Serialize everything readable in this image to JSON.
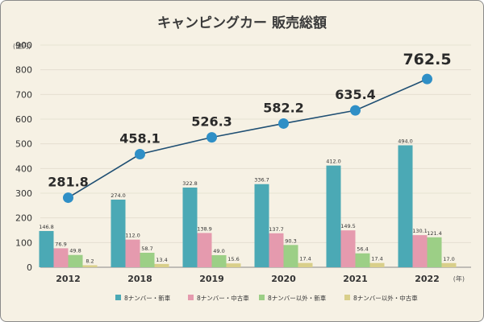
{
  "chart_data": {
    "type": "bar",
    "title": "キャンピングカー 販売総額",
    "y_unit": "(億円)",
    "x_unit": "(年)",
    "categories": [
      "2012",
      "2018",
      "2019",
      "2020",
      "2021",
      "2022"
    ],
    "ylim": [
      0,
      900
    ],
    "yticks": [
      "0",
      "100",
      "200",
      "300",
      "400",
      "500",
      "600",
      "700",
      "800",
      "900"
    ],
    "grid": true,
    "legend_position": "bottom",
    "series": [
      {
        "name": "8ナンバー・新車",
        "color": "#4ba9b5",
        "values": [
          146.8,
          274.0,
          322.8,
          336.7,
          412.0,
          494.0
        ],
        "labels": [
          "146.8",
          "274.0",
          "322.8",
          "336.7",
          "412.0",
          "494.0"
        ]
      },
      {
        "name": "8ナンバー・中古車",
        "color": "#e59aae",
        "values": [
          76.9,
          112.0,
          138.9,
          137.7,
          149.5,
          130.1
        ],
        "labels": [
          "76.9",
          "112.0",
          "138.9",
          "137.7",
          "149.5",
          "130.1"
        ]
      },
      {
        "name": "8ナンバー以外・新車",
        "color": "#9ccf86",
        "values": [
          49.8,
          58.7,
          49.0,
          90.3,
          56.4,
          121.4
        ],
        "labels": [
          "49.8",
          "58.7",
          "49.0",
          "90.3",
          "56.4",
          "121.4"
        ]
      },
      {
        "name": "8ナンバー以外・中古車",
        "color": "#d9cf8a",
        "values": [
          8.2,
          13.4,
          15.6,
          17.4,
          17.4,
          17.0
        ],
        "labels": [
          "8.2",
          "13.4",
          "15.6",
          "17.4",
          "17.4",
          "17.0"
        ]
      }
    ],
    "total_line": {
      "name": "販売総額",
      "color": "#1f4f73",
      "marker_color": "#2f8fc6",
      "values": [
        281.8,
        458.1,
        526.3,
        582.2,
        635.4,
        762.5
      ],
      "labels": [
        "281.8",
        "458.1",
        "526.3",
        "582.2",
        "635.4",
        "762.5"
      ]
    }
  }
}
